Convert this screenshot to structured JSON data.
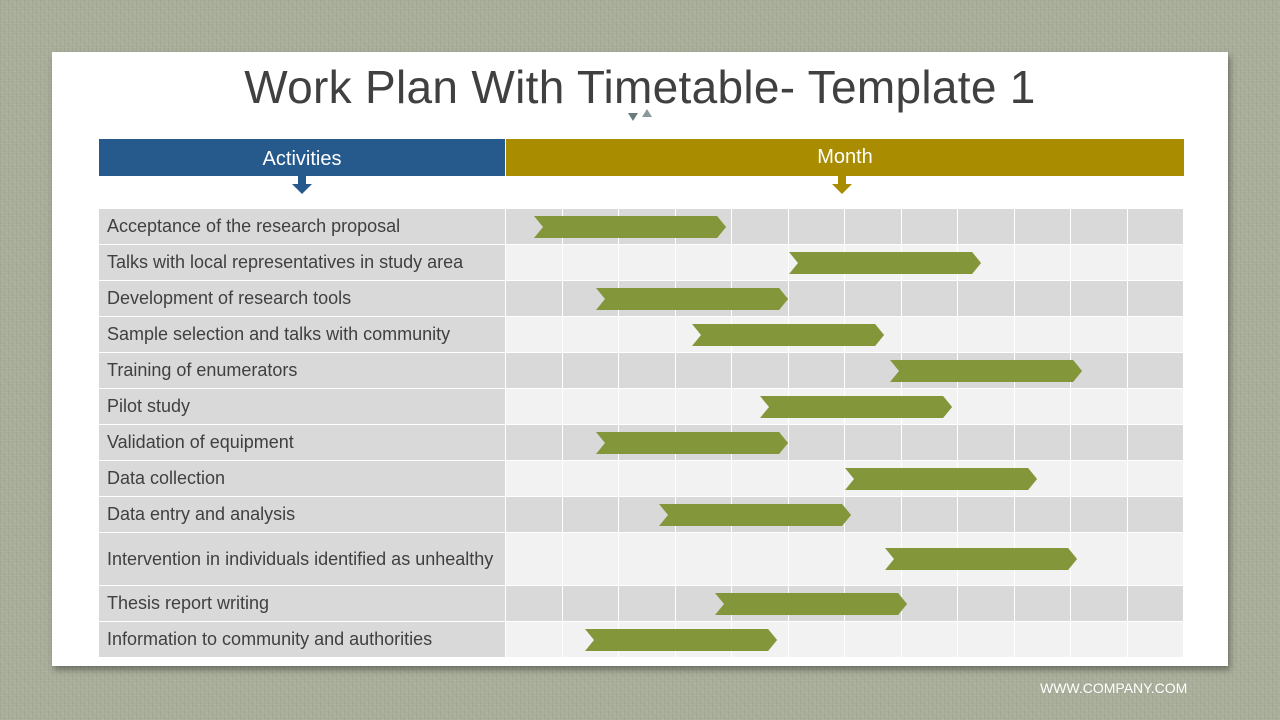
{
  "title": "Work Plan With Timetable- Template 1",
  "header": {
    "activities_label": "Activities",
    "month_label": "Month"
  },
  "colors": {
    "activities_header": "#265a8c",
    "month_header": "#a98c00",
    "bar": "#84963a",
    "cell_dark": "#d9d9d9",
    "cell_light": "#f2f2f2"
  },
  "chart_data": {
    "type": "gantt",
    "month_columns": 12,
    "tasks": [
      {
        "activity": "Acceptance of the research proposal",
        "start": 0.5,
        "end": 3.9
      },
      {
        "activity": "Talks with local representatives in study area",
        "start": 5.0,
        "end": 8.4
      },
      {
        "activity": "Development of research tools",
        "start": 1.6,
        "end": 5.0
      },
      {
        "activity": "Sample selection and talks with community",
        "start": 3.3,
        "end": 6.7
      },
      {
        "activity": "Training of enumerators",
        "start": 6.8,
        "end": 10.2
      },
      {
        "activity": "Pilot study",
        "start": 4.5,
        "end": 7.9
      },
      {
        "activity": "Validation of equipment",
        "start": 1.6,
        "end": 5.0
      },
      {
        "activity": "Data collection",
        "start": 6.0,
        "end": 9.4
      },
      {
        "activity": "Data entry and analysis",
        "start": 2.7,
        "end": 6.1
      },
      {
        "activity": "Intervention in individuals identified as unhealthy",
        "start": 6.7,
        "end": 10.1
      },
      {
        "activity": "Thesis report writing",
        "start": 3.7,
        "end": 7.1
      },
      {
        "activity": "Information to community and authorities",
        "start": 1.4,
        "end": 4.8
      }
    ]
  },
  "footer": "WWW.COMPANY.COM"
}
